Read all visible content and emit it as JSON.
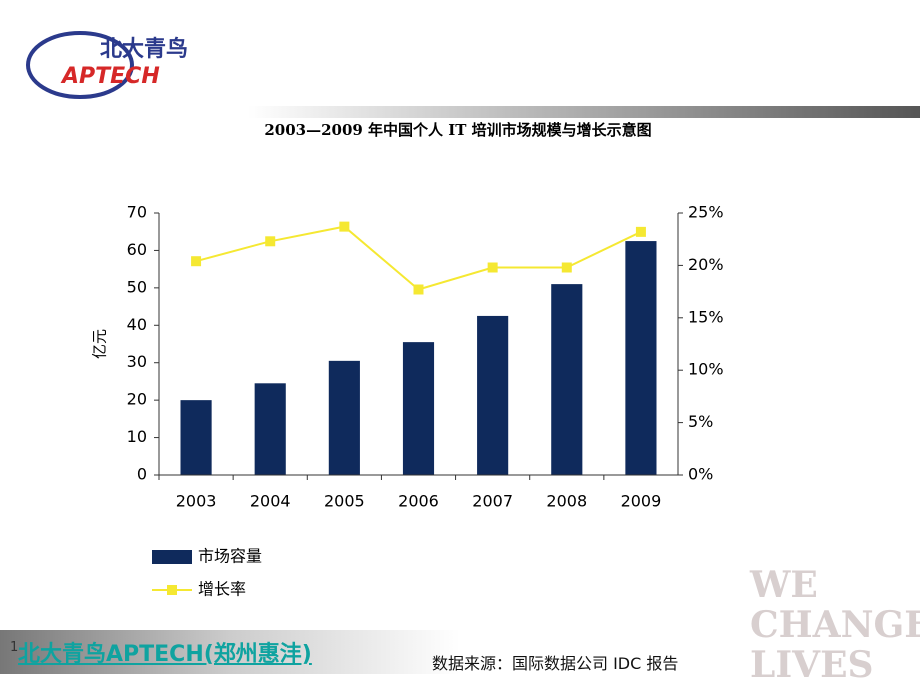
{
  "logo": {
    "name": "北大青鸟",
    "brand": "APTECH"
  },
  "footer": "北大青鸟APTECH(郑州惠沣)",
  "source": "数据来源：国际数据公司 IDC 报告",
  "page_number": "1",
  "watermark": [
    "WE",
    "CHANGE",
    "LIVES"
  ],
  "chart_data": {
    "type": "bar_line",
    "title": "2003—2009 年中国个人 IT 培训市场规模与增长示意图",
    "y_label": "亿元",
    "categories": [
      "2003",
      "2004",
      "2005",
      "2006",
      "2007",
      "2008",
      "2009"
    ],
    "series": [
      {
        "name": "市场容量",
        "color": "#0f2a5c",
        "type": "bar",
        "values": [
          20,
          24.5,
          30.5,
          35.5,
          42.5,
          51,
          62.5
        ]
      },
      {
        "name": "增长率",
        "color": "#f5e832",
        "type": "line",
        "axis": "y2",
        "values": [
          20.4,
          22.3,
          23.7,
          17.7,
          19.8,
          19.8,
          23.2
        ]
      }
    ],
    "ylim": [
      0,
      70
    ],
    "yticks": [
      0,
      10,
      20,
      30,
      40,
      50,
      60,
      70
    ],
    "y2lim": [
      0,
      25
    ],
    "y2ticks": [
      {
        "value": 0,
        "label": "0%"
      },
      {
        "value": 5,
        "label": "5%"
      },
      {
        "value": 10,
        "label": "10%"
      },
      {
        "value": 15,
        "label": "15%"
      },
      {
        "value": 20,
        "label": "20%"
      },
      {
        "value": 25,
        "label": "25%"
      }
    ]
  }
}
